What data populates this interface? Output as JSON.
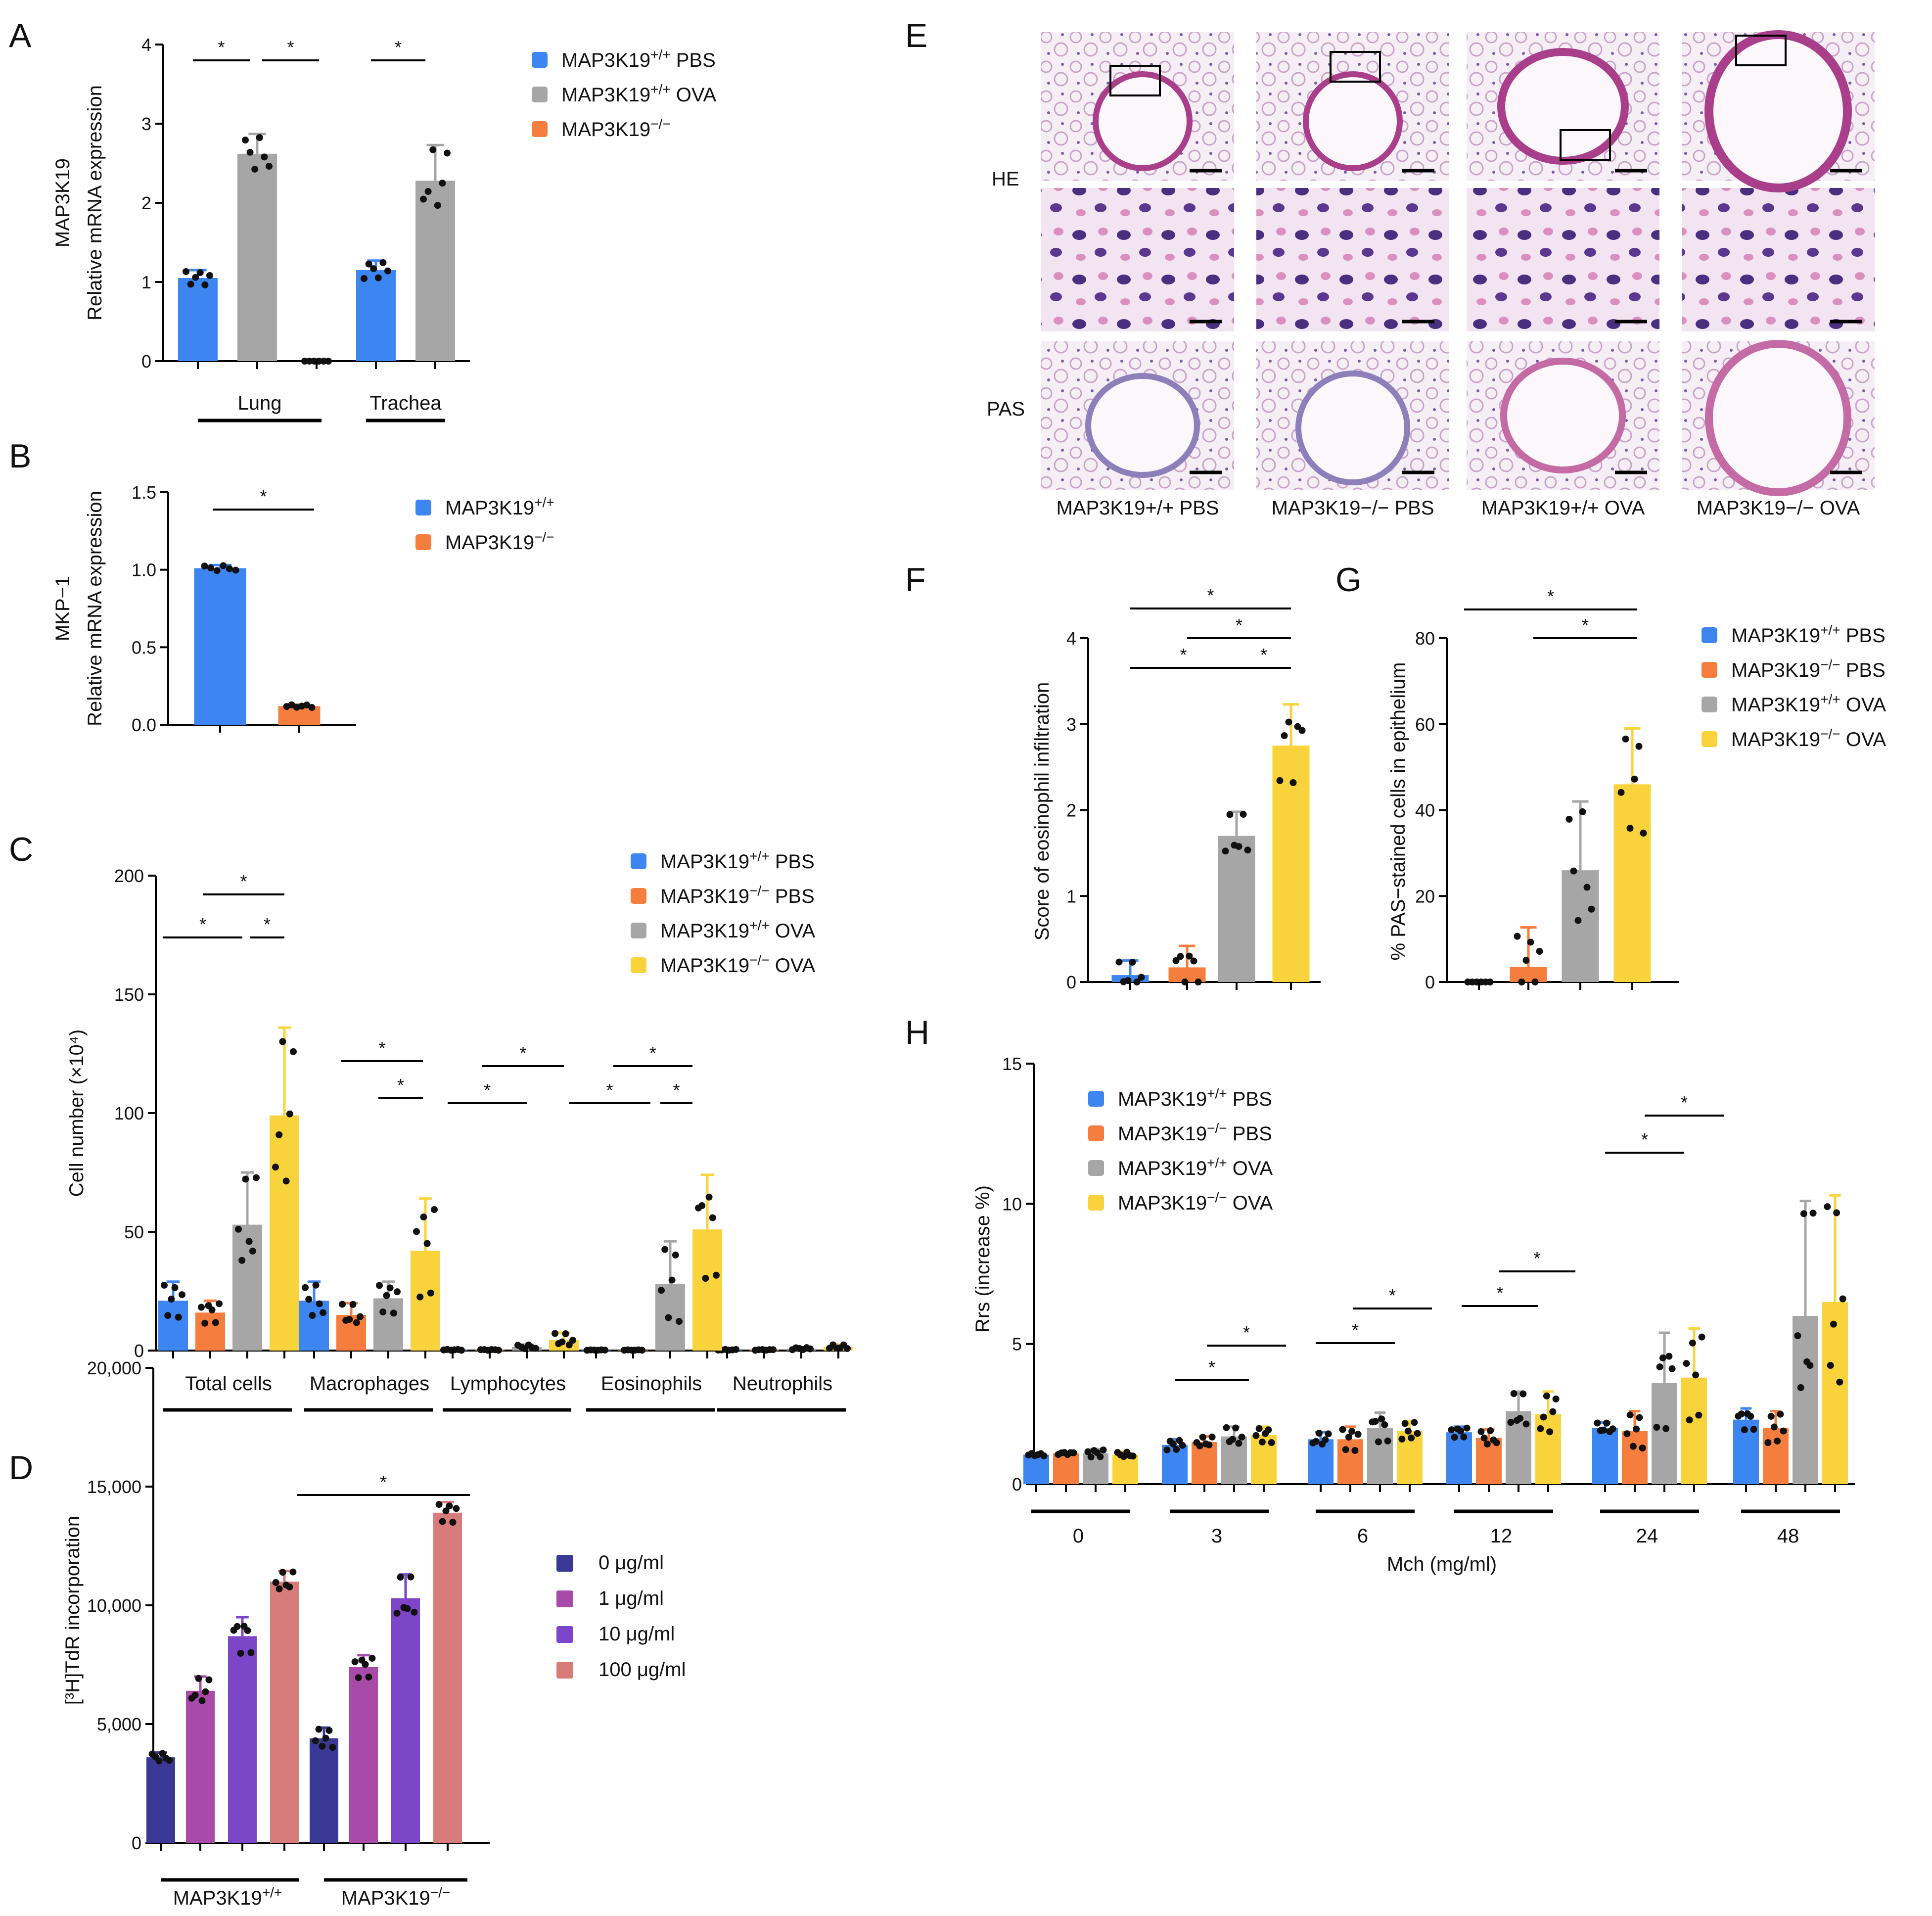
{
  "colors": {
    "wt_pbs": "#3d85f0",
    "ko_pbs": "#f57d3d",
    "wt_ova": "#a6a6a6",
    "ko_ova": "#f9d33b",
    "conc0": "#3a3a96",
    "conc1": "#a84aa8",
    "conc10": "#7d45c8",
    "conc100": "#d87b7b"
  },
  "panels": {
    "A": "A",
    "B": "B",
    "C": "C",
    "D": "D",
    "E": "E",
    "F": "F",
    "G": "G",
    "H": "H"
  },
  "panelE": {
    "row_labels": [
      "HE",
      "PAS"
    ],
    "col_labels": [
      "MAP3K19+/+ PBS",
      "MAP3K19−/− PBS",
      "MAP3K19+/+ OVA",
      "MAP3K19−/− OVA"
    ]
  },
  "chart_data": [
    {
      "id": "A",
      "type": "bar",
      "ylabel": [
        "MAP3K19",
        "Relative mRNA expression"
      ],
      "ylim": [
        0,
        4
      ],
      "yticks": [
        "0",
        "1",
        "2",
        "3",
        "4"
      ],
      "groups": [
        "Lung",
        "Trachea"
      ],
      "legend": [
        "MAP3K19+/+ PBS",
        "MAP3K19+/+ OVA",
        "MAP3K19−/−"
      ],
      "bars": [
        {
          "group": "Lung",
          "series": "MAP3K19+/+ PBS",
          "value": 1.05,
          "sd": 0.1
        },
        {
          "group": "Lung",
          "series": "MAP3K19+/+ OVA",
          "value": 2.62,
          "sd": 0.25
        },
        {
          "group": "Lung",
          "series": "MAP3K19−/−",
          "value": 0.0,
          "sd": 0
        },
        {
          "group": "Trachea",
          "series": "MAP3K19+/+ PBS",
          "value": 1.15,
          "sd": 0.12
        },
        {
          "group": "Trachea",
          "series": "MAP3K19+/+ OVA",
          "value": 2.28,
          "sd": 0.45
        }
      ],
      "significance": "*"
    },
    {
      "id": "B",
      "type": "bar",
      "ylabel": [
        "MKP−1",
        "Relative mRNA expression"
      ],
      "ylim": [
        0,
        1.5
      ],
      "yticks": [
        "0.0",
        "0.5",
        "1.0",
        "1.5"
      ],
      "legend": [
        "MAP3K19+/+",
        "MAP3K19−/−"
      ],
      "bars": [
        {
          "series": "MAP3K19+/+",
          "value": 1.01,
          "sd": 0.02
        },
        {
          "series": "MAP3K19−/−",
          "value": 0.12,
          "sd": 0.01
        }
      ],
      "significance": "*"
    },
    {
      "id": "C",
      "type": "bar",
      "ylabel": "Cell number (×10⁴)",
      "ylim": [
        0,
        200
      ],
      "yticks": [
        "0",
        "50",
        "100",
        "150",
        "200"
      ],
      "groups": [
        "Total cells",
        "Macrophages",
        "Lymphocytes",
        "Eosinophils",
        "Neutrophils"
      ],
      "legend": [
        "MAP3K19+/+ PBS",
        "MAP3K19−/− PBS",
        "MAP3K19+/+ OVA",
        "MAP3K19−/− OVA"
      ],
      "series": [
        {
          "name": "MAP3K19+/+ PBS",
          "values": [
            21,
            21,
            0.3,
            0.2,
            0.3
          ],
          "sd": [
            8,
            8,
            0.2,
            0.1,
            0.2
          ]
        },
        {
          "name": "MAP3K19−/− PBS",
          "values": [
            16,
            15,
            0.3,
            0.2,
            0.3
          ],
          "sd": [
            5,
            5,
            0.2,
            0.1,
            0.2
          ]
        },
        {
          "name": "MAP3K19+/+ OVA",
          "values": [
            53,
            22,
            1.5,
            28,
            0.8
          ],
          "sd": [
            22,
            7,
            1,
            18,
            0.5
          ]
        },
        {
          "name": "MAP3K19−/− OVA",
          "values": [
            99,
            42,
            4.5,
            51,
            1.5
          ],
          "sd": [
            37,
            22,
            3,
            23,
            1
          ]
        }
      ],
      "significance": "*"
    },
    {
      "id": "D",
      "type": "bar",
      "ylabel": "[³H]TdR incorporation",
      "ylim": [
        0,
        20000
      ],
      "yticks": [
        "0",
        "5,000",
        "10,000",
        "15,000",
        "20,000"
      ],
      "groups": [
        "MAP3K19+/+",
        "MAP3K19−/−"
      ],
      "legend": [
        "0 μg/ml",
        "1 μg/ml",
        "10 μg/ml",
        "100 μg/ml"
      ],
      "series": [
        {
          "name": "0 μg/ml",
          "values": [
            3600,
            4400
          ],
          "sd": [
            200,
            450
          ]
        },
        {
          "name": "1 μg/ml",
          "values": [
            6400,
            7400
          ],
          "sd": [
            600,
            500
          ]
        },
        {
          "name": "10 μg/ml",
          "values": [
            8700,
            10300
          ],
          "sd": [
            800,
            1000
          ]
        },
        {
          "name": "100 μg/ml",
          "values": [
            11000,
            13900
          ],
          "sd": [
            450,
            450
          ]
        }
      ],
      "significance": "*"
    },
    {
      "id": "F",
      "type": "bar",
      "ylabel": "Score of eosinophil infiltration",
      "ylim": [
        0,
        4
      ],
      "yticks": [
        "0",
        "1",
        "2",
        "3",
        "4"
      ],
      "series": [
        {
          "name": "MAP3K19+/+ PBS",
          "value": 0.08,
          "sd": 0.17
        },
        {
          "name": "MAP3K19−/− PBS",
          "value": 0.17,
          "sd": 0.25
        },
        {
          "name": "MAP3K19+/+ OVA",
          "value": 1.7,
          "sd": 0.28
        },
        {
          "name": "MAP3K19−/− OVA",
          "value": 2.75,
          "sd": 0.48
        }
      ],
      "significance": "*"
    },
    {
      "id": "G",
      "type": "bar",
      "ylabel": "% PAS−stained cells in epithelium",
      "ylim": [
        0,
        80
      ],
      "yticks": [
        "0",
        "20",
        "40",
        "60",
        "80"
      ],
      "legend": [
        "MAP3K19+/+ PBS",
        "MAP3K19−/− PBS",
        "MAP3K19+/+ OVA",
        "MAP3K19−/− OVA"
      ],
      "series": [
        {
          "name": "MAP3K19+/+ PBS",
          "value": 0,
          "sd": 0
        },
        {
          "name": "MAP3K19−/− PBS",
          "value": 3.5,
          "sd": 9.2
        },
        {
          "name": "MAP3K19+/+ OVA",
          "value": 26,
          "sd": 16
        },
        {
          "name": "MAP3K19−/− OVA",
          "value": 46,
          "sd": 13
        }
      ],
      "significance": "*"
    },
    {
      "id": "H",
      "type": "bar",
      "ylabel": "Rrs (increase %)",
      "xlabel": "Mch (mg/ml)",
      "ylim": [
        0,
        15
      ],
      "yticks": [
        "0",
        "5",
        "10",
        "15"
      ],
      "groups": [
        "0",
        "3",
        "6",
        "12",
        "24",
        "48"
      ],
      "legend": [
        "MAP3K19+/+ PBS",
        "MAP3K19−/− PBS",
        "MAP3K19+/+ OVA",
        "MAP3K19−/− OVA"
      ],
      "series": [
        {
          "name": "MAP3K19+/+ PBS",
          "values": [
            1.05,
            1.4,
            1.6,
            1.85,
            2.0,
            2.3
          ],
          "sd": [
            0.05,
            0.2,
            0.25,
            0.2,
            0.2,
            0.4
          ]
        },
        {
          "name": "MAP3K19−/− PBS",
          "values": [
            1.1,
            1.5,
            1.6,
            1.65,
            1.9,
            2.0
          ],
          "sd": [
            0.05,
            0.2,
            0.45,
            0.3,
            0.7,
            0.6
          ]
        },
        {
          "name": "MAP3K19+/+ OVA",
          "values": [
            1.1,
            1.7,
            2.0,
            2.6,
            3.6,
            6.0
          ],
          "sd": [
            0.15,
            0.35,
            0.55,
            0.7,
            1.8,
            4.1
          ]
        },
        {
          "name": "MAP3K19−/− OVA",
          "values": [
            1.05,
            1.75,
            1.9,
            2.5,
            3.8,
            6.5
          ],
          "sd": [
            0.1,
            0.3,
            0.35,
            0.8,
            1.75,
            3.8
          ]
        }
      ],
      "significance": "*"
    }
  ]
}
